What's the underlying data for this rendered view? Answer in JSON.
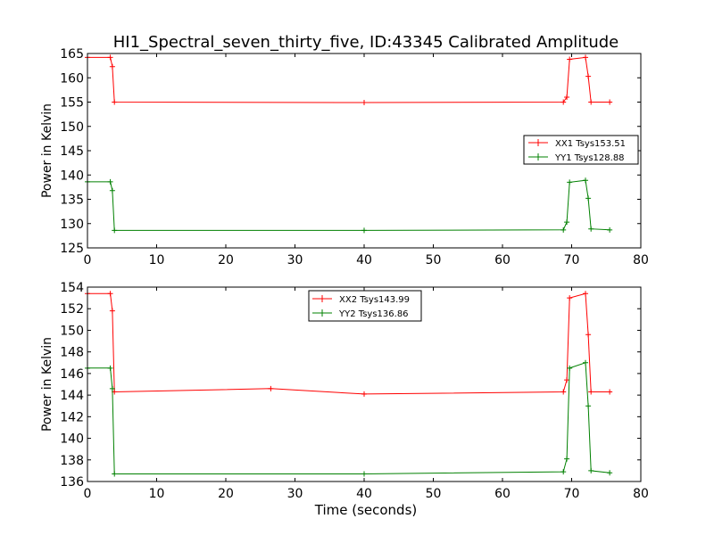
{
  "chart_data": [
    {
      "type": "line",
      "title": "HI1_Spectral_seven_thirty_five, ID:43345 Calibrated Amplitude",
      "xlabel": "",
      "ylabel": "Power in Kelvin",
      "xlim": [
        0,
        80
      ],
      "ylim": [
        125,
        165
      ],
      "xticks": [
        0,
        10,
        20,
        30,
        40,
        50,
        60,
        70,
        80
      ],
      "yticks": [
        125,
        130,
        135,
        140,
        145,
        150,
        155,
        160,
        165
      ],
      "legend_position": "center-right",
      "series": [
        {
          "name": "XX1 Tsys153.51",
          "color": "#ff0000",
          "x": [
            0,
            3.3,
            3.6,
            3.9,
            40,
            68.8,
            69.3,
            69.7,
            72.0,
            72.4,
            72.8,
            75.5
          ],
          "y": [
            164.2,
            164.2,
            162.3,
            155.0,
            154.9,
            155.0,
            156.0,
            163.8,
            164.2,
            160.3,
            155.0,
            155.0
          ]
        },
        {
          "name": "YY1 Tsys128.88",
          "color": "#008000",
          "x": [
            0,
            3.3,
            3.6,
            3.9,
            40,
            68.8,
            69.3,
            69.7,
            72.0,
            72.4,
            72.8,
            75.5
          ],
          "y": [
            138.6,
            138.6,
            136.8,
            128.6,
            128.6,
            128.7,
            130.3,
            138.5,
            138.9,
            135.2,
            128.9,
            128.7
          ]
        }
      ]
    },
    {
      "type": "line",
      "title": "",
      "xlabel": "Time (seconds)",
      "ylabel": "Power in Kelvin",
      "xlim": [
        0,
        80
      ],
      "ylim": [
        136,
        154
      ],
      "xticks": [
        0,
        10,
        20,
        30,
        40,
        50,
        60,
        70,
        80
      ],
      "yticks": [
        136,
        138,
        140,
        142,
        144,
        146,
        148,
        150,
        152,
        154
      ],
      "legend_position": "upper-center",
      "series": [
        {
          "name": "XX2 Tsys143.99",
          "color": "#ff0000",
          "x": [
            0,
            3.3,
            3.6,
            3.9,
            26.5,
            40,
            68.8,
            69.3,
            69.7,
            72.0,
            72.4,
            72.8,
            75.5
          ],
          "y": [
            153.4,
            153.4,
            151.8,
            144.3,
            144.6,
            144.1,
            144.3,
            145.4,
            153.0,
            153.4,
            149.6,
            144.3,
            144.3
          ]
        },
        {
          "name": "YY2 Tsys136.86",
          "color": "#008000",
          "x": [
            0,
            3.3,
            3.6,
            3.9,
            40,
            68.8,
            69.3,
            69.7,
            72.0,
            72.4,
            72.8,
            75.5
          ],
          "y": [
            146.5,
            146.5,
            144.6,
            136.7,
            136.7,
            136.9,
            138.1,
            146.5,
            147.0,
            143.0,
            137.0,
            136.8
          ]
        }
      ]
    }
  ]
}
